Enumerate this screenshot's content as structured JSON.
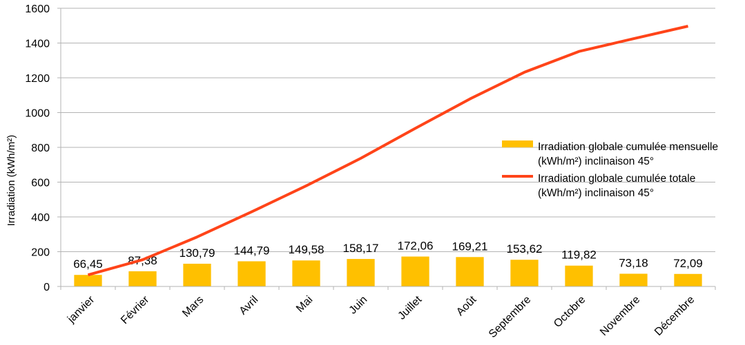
{
  "chart_data": {
    "type": "bar",
    "categories": [
      "janvier",
      "Février",
      "Mars",
      "Avril",
      "Mai",
      "Juin",
      "Juillet",
      "Août",
      "Septembre",
      "Octobre",
      "Novembre",
      "Décembre"
    ],
    "series": [
      {
        "name": "Irradiation globale cumulée mensuelle (kWh/m²) inclinaison 45°",
        "name_lines": [
          "Irradiation globale cumulée mensuelle",
          "(kWh/m²) inclinaison 45°"
        ],
        "type": "bar",
        "color": "#FFC000",
        "values": [
          66.45,
          87.38,
          130.79,
          144.79,
          149.58,
          158.17,
          172.06,
          169.21,
          153.62,
          119.82,
          73.18,
          72.09
        ],
        "labels": [
          "66,45",
          "87,38",
          "130,79",
          "144,79",
          "149,58",
          "158,17",
          "172,06",
          "169,21",
          "153,62",
          "119,82",
          "73,18",
          "72,09"
        ]
      },
      {
        "name": "Irradiation globale cumulée totale (kWh/m²) inclinaison 45°",
        "name_lines": [
          "Irradiation globale cumulée totale",
          "(kWh/m²) inclinaison 45°"
        ],
        "type": "line",
        "color": "#FF4419",
        "values": [
          66.45,
          153.83,
          284.62,
          429.41,
          578.99,
          737.16,
          909.22,
          1078.43,
          1232.05,
          1351.87,
          1425.05,
          1497.14
        ]
      }
    ],
    "ylabel": "Irradiation (kWh/m²)",
    "xlabel": "",
    "ylim": [
      0,
      1600
    ],
    "yticks": [
      0,
      200,
      400,
      600,
      800,
      1000,
      1200,
      1400,
      1600
    ],
    "grid": true,
    "legend": "right"
  }
}
